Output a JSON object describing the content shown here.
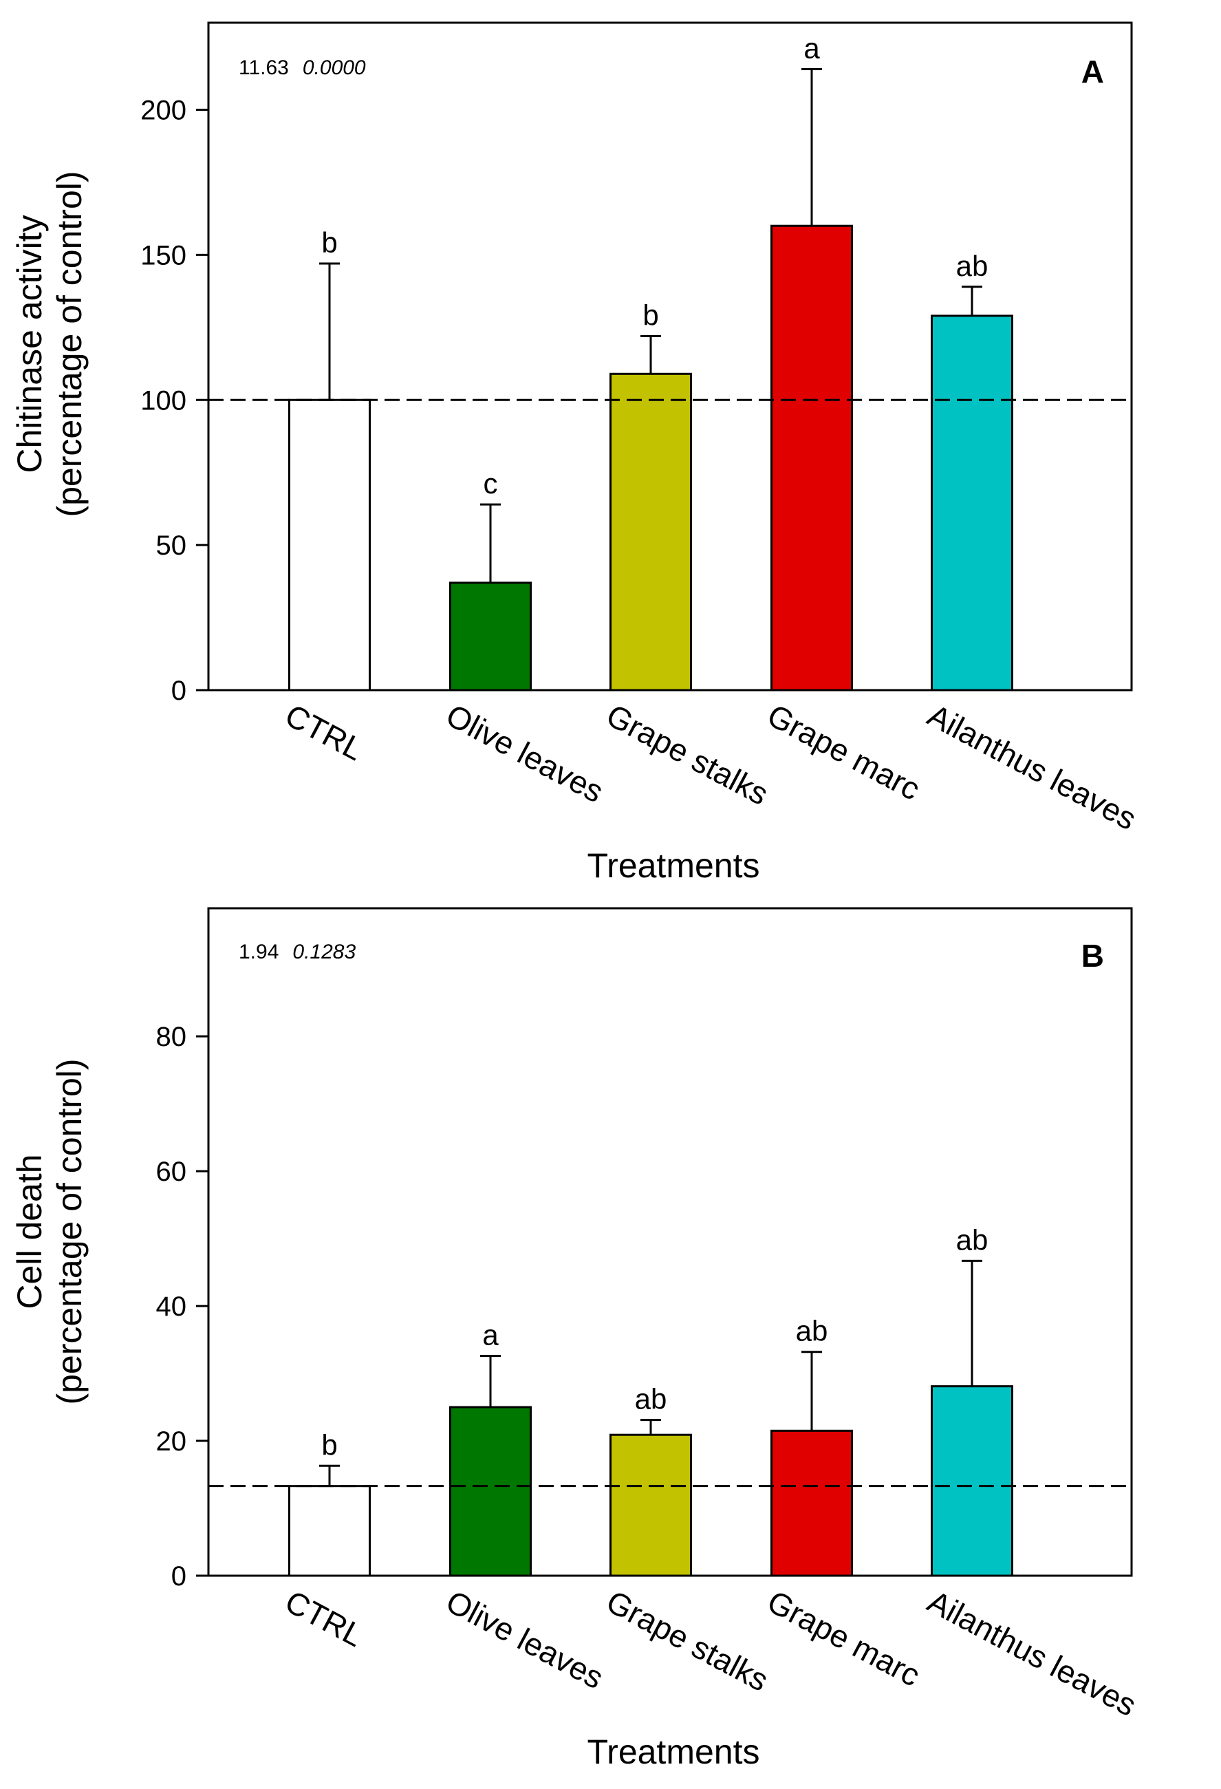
{
  "chart_data": [
    {
      "type": "bar",
      "panel_label": "A",
      "stat_value": "11.63",
      "p_value": "0.0000",
      "categories": [
        "CTRL",
        "Olive leaves",
        "Grape stalks",
        "Grape marc",
        "Ailanthus leaves"
      ],
      "values": [
        100,
        37,
        109,
        160,
        129
      ],
      "error_upper": [
        147,
        64,
        122,
        214,
        139
      ],
      "significance": [
        "b",
        "c",
        "b",
        "a",
        "ab"
      ],
      "colors": [
        "#ffffff",
        "#007700",
        "#c2c200",
        "#e00000",
        "#00c2c2"
      ],
      "reference_line": 100,
      "ylabel_line1": "Chitinase activity",
      "ylabel_line2": "(percentage of control)",
      "xlabel": "Treatments",
      "ylim": [
        0,
        230
      ],
      "yticks": [
        0,
        50,
        100,
        150,
        200
      ]
    },
    {
      "type": "bar",
      "panel_label": "B",
      "stat_value": "1.94",
      "p_value": "0.1283",
      "categories": [
        "CTRL",
        "Olive leaves",
        "Grape stalks",
        "Grape marc",
        "Ailanthus leaves"
      ],
      "values": [
        13.3,
        25.0,
        20.9,
        21.5,
        28.1
      ],
      "error_upper": [
        16.3,
        32.6,
        23.1,
        33.2,
        46.7
      ],
      "significance": [
        "b",
        "a",
        "ab",
        "ab",
        "ab"
      ],
      "colors": [
        "#ffffff",
        "#007700",
        "#c2c200",
        "#e00000",
        "#00c2c2"
      ],
      "reference_line": 13.3,
      "ylabel_line1": "Cell death",
      "ylabel_line2": "(percentage of control)",
      "xlabel": "Treatments",
      "ylim": [
        0,
        99
      ],
      "yticks": [
        0,
        20,
        40,
        60,
        80
      ]
    }
  ]
}
